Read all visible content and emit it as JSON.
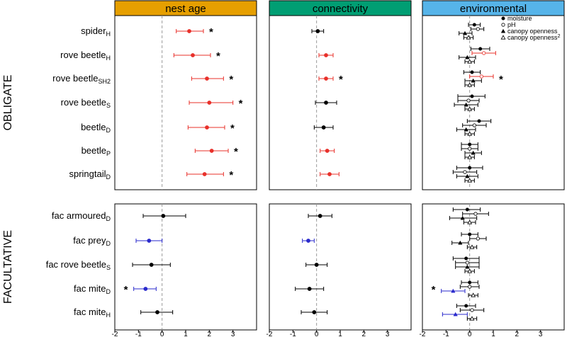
{
  "chart_data": {
    "type": "scatter",
    "subtype": "forest-plot",
    "xlim": [
      -2,
      4
    ],
    "x_ticks": [
      -2,
      -1,
      0,
      1,
      2,
      3
    ],
    "reference_line_x": 0,
    "panels": [
      "nest age",
      "connectivity",
      "environmental"
    ],
    "panel_colors": {
      "nest age": "#E69F00",
      "connectivity": "#009E73",
      "environmental": "#56B4E9"
    },
    "colors": {
      "positive": "#e8302a",
      "negative": "#2a2acc",
      "neutral": "#000000"
    },
    "groups": [
      {
        "label": "OBLIGATE",
        "rows": [
          {
            "name": "spider",
            "sub": "H",
            "nest_age": {
              "est": 1.15,
              "lo": 0.6,
              "hi": 1.75,
              "sig": true
            },
            "connectivity": {
              "est": 0.05,
              "lo": -0.2,
              "hi": 0.3,
              "sig": false
            },
            "environmental": [
              {
                "var": "moisture",
                "est": 0.2,
                "lo": -0.05,
                "hi": 0.45,
                "sig": false
              },
              {
                "var": "pH",
                "est": 0.35,
                "lo": 0.05,
                "hi": 0.6,
                "sig": false
              },
              {
                "var": "canopy openness",
                "est": -0.2,
                "lo": -0.45,
                "hi": 0.1,
                "sig": false
              },
              {
                "var": "canopy openness2",
                "est": -0.05,
                "lo": -0.25,
                "hi": 0.15,
                "sig": false
              }
            ]
          },
          {
            "name": "rove beetle",
            "sub": "H",
            "nest_age": {
              "est": 1.3,
              "lo": 0.5,
              "hi": 2.05,
              "sig": true
            },
            "connectivity": {
              "est": 0.4,
              "lo": 0.1,
              "hi": 0.7,
              "sig": true
            },
            "environmental": [
              {
                "var": "moisture",
                "est": 0.45,
                "lo": 0.05,
                "hi": 0.85,
                "sig": false
              },
              {
                "var": "pH",
                "est": 0.6,
                "lo": 0.1,
                "hi": 1.1,
                "sig": true
              },
              {
                "var": "canopy openness",
                "est": -0.1,
                "lo": -0.45,
                "hi": 0.25,
                "sig": false
              },
              {
                "var": "canopy openness2",
                "est": 0.0,
                "lo": -0.2,
                "hi": 0.2,
                "sig": false
              }
            ]
          },
          {
            "name": "rove beetle",
            "sub": "SH2",
            "nest_age": {
              "est": 1.9,
              "lo": 1.25,
              "hi": 2.6,
              "sig": true
            },
            "connectivity": {
              "est": 0.4,
              "lo": 0.1,
              "hi": 0.7,
              "sig": true
            },
            "environmental": [
              {
                "var": "moisture",
                "est": 0.1,
                "lo": -0.25,
                "hi": 0.45,
                "sig": false
              },
              {
                "var": "pH",
                "est": 0.5,
                "lo": 0.0,
                "hi": 1.0,
                "sig": true
              },
              {
                "var": "canopy openness",
                "est": 0.15,
                "lo": -0.2,
                "hi": 0.5,
                "sig": false
              },
              {
                "var": "canopy openness2",
                "est": 0.0,
                "lo": -0.2,
                "hi": 0.2,
                "sig": false
              }
            ]
          },
          {
            "name": "rove beetle",
            "sub": "S",
            "nest_age": {
              "est": 2.0,
              "lo": 1.15,
              "hi": 3.0,
              "sig": true
            },
            "connectivity": {
              "est": 0.4,
              "lo": -0.05,
              "hi": 0.85,
              "sig": false
            },
            "environmental": [
              {
                "var": "moisture",
                "est": 0.1,
                "lo": -0.5,
                "hi": 0.65,
                "sig": false
              },
              {
                "var": "pH",
                "est": -0.05,
                "lo": -0.5,
                "hi": 0.4,
                "sig": false
              },
              {
                "var": "canopy openness",
                "est": -0.15,
                "lo": -0.65,
                "hi": 0.35,
                "sig": false
              },
              {
                "var": "canopy openness2",
                "est": 0.0,
                "lo": -0.2,
                "hi": 0.2,
                "sig": false
              }
            ]
          },
          {
            "name": "beetle",
            "sub": "D",
            "nest_age": {
              "est": 1.9,
              "lo": 1.1,
              "hi": 2.65,
              "sig": true
            },
            "connectivity": {
              "est": 0.3,
              "lo": -0.1,
              "hi": 0.7,
              "sig": false
            },
            "environmental": [
              {
                "var": "moisture",
                "est": 0.4,
                "lo": -0.1,
                "hi": 0.9,
                "sig": false
              },
              {
                "var": "pH",
                "est": 0.2,
                "lo": -0.3,
                "hi": 0.7,
                "sig": false
              },
              {
                "var": "canopy openness",
                "est": -0.15,
                "lo": -0.55,
                "hi": 0.25,
                "sig": false
              },
              {
                "var": "canopy openness2",
                "est": 0.0,
                "lo": -0.2,
                "hi": 0.2,
                "sig": false
              }
            ]
          },
          {
            "name": "beetle",
            "sub": "P",
            "nest_age": {
              "est": 2.1,
              "lo": 1.4,
              "hi": 2.8,
              "sig": true
            },
            "connectivity": {
              "est": 0.45,
              "lo": 0.15,
              "hi": 0.75,
              "sig": true
            },
            "environmental": [
              {
                "var": "moisture",
                "est": 0.0,
                "lo": -0.35,
                "hi": 0.35,
                "sig": false
              },
              {
                "var": "pH",
                "est": 0.0,
                "lo": -0.35,
                "hi": 0.35,
                "sig": false
              },
              {
                "var": "canopy openness",
                "est": 0.15,
                "lo": -0.2,
                "hi": 0.5,
                "sig": false
              },
              {
                "var": "canopy openness2",
                "est": 0.0,
                "lo": -0.2,
                "hi": 0.2,
                "sig": false
              }
            ]
          },
          {
            "name": "springtail",
            "sub": "D",
            "nest_age": {
              "est": 1.8,
              "lo": 1.05,
              "hi": 2.6,
              "sig": true
            },
            "connectivity": {
              "est": 0.55,
              "lo": 0.15,
              "hi": 0.95,
              "sig": true
            },
            "environmental": [
              {
                "var": "moisture",
                "est": 0.0,
                "lo": -0.55,
                "hi": 0.55,
                "sig": false
              },
              {
                "var": "pH",
                "est": -0.2,
                "lo": -0.7,
                "hi": 0.3,
                "sig": false
              },
              {
                "var": "canopy openness",
                "est": -0.1,
                "lo": -0.55,
                "hi": 0.35,
                "sig": false
              },
              {
                "var": "canopy openness2",
                "est": 0.0,
                "lo": -0.2,
                "hi": 0.2,
                "sig": false
              }
            ]
          }
        ]
      },
      {
        "label": "FACULTATIVE",
        "rows": [
          {
            "name": "fac armoured",
            "sub": "D",
            "nest_age": {
              "est": 0.05,
              "lo": -0.8,
              "hi": 1.0,
              "sig": false
            },
            "connectivity": {
              "est": 0.15,
              "lo": -0.35,
              "hi": 0.65,
              "sig": false
            },
            "environmental": [
              {
                "var": "moisture",
                "est": -0.1,
                "lo": -0.7,
                "hi": 0.45,
                "sig": false
              },
              {
                "var": "pH",
                "est": 0.25,
                "lo": -0.3,
                "hi": 0.8,
                "sig": false
              },
              {
                "var": "canopy openness",
                "est": -0.3,
                "lo": -0.85,
                "hi": 0.3,
                "sig": false
              },
              {
                "var": "canopy openness2",
                "est": 0.0,
                "lo": -0.25,
                "hi": 0.25,
                "sig": false
              }
            ]
          },
          {
            "name": "fac prey",
            "sub": "D",
            "nest_age": {
              "est": -0.55,
              "lo": -1.1,
              "hi": 0.0,
              "sig": true
            },
            "connectivity": {
              "est": -0.35,
              "lo": -0.6,
              "hi": -0.1,
              "sig": true
            },
            "environmental": [
              {
                "var": "moisture",
                "est": 0.0,
                "lo": -0.35,
                "hi": 0.35,
                "sig": false
              },
              {
                "var": "pH",
                "est": 0.35,
                "lo": 0.0,
                "hi": 0.7,
                "sig": false
              },
              {
                "var": "canopy openness",
                "est": -0.4,
                "lo": -0.75,
                "hi": -0.05,
                "sig": false
              },
              {
                "var": "canopy openness2",
                "est": 0.1,
                "lo": -0.1,
                "hi": 0.3,
                "sig": false
              }
            ]
          },
          {
            "name": "fac rove beetle",
            "sub": "S",
            "nest_age": {
              "est": -0.45,
              "lo": -1.25,
              "hi": 0.35,
              "sig": false
            },
            "connectivity": {
              "est": 0.0,
              "lo": -0.45,
              "hi": 0.45,
              "sig": false
            },
            "environmental": [
              {
                "var": "moisture",
                "est": -0.15,
                "lo": -0.7,
                "hi": 0.4,
                "sig": false
              },
              {
                "var": "pH",
                "est": -0.1,
                "lo": -0.6,
                "hi": 0.4,
                "sig": false
              },
              {
                "var": "canopy openness",
                "est": -0.1,
                "lo": -0.6,
                "hi": 0.4,
                "sig": false
              },
              {
                "var": "canopy openness2",
                "est": 0.0,
                "lo": -0.2,
                "hi": 0.2,
                "sig": false
              }
            ]
          },
          {
            "name": "fac mite",
            "sub": "D",
            "nest_age": {
              "est": -0.7,
              "lo": -1.2,
              "hi": -0.25,
              "sig": true
            },
            "connectivity": {
              "est": -0.3,
              "lo": -0.9,
              "hi": 0.3,
              "sig": false
            },
            "environmental": [
              {
                "var": "moisture",
                "est": 0.0,
                "lo": -0.35,
                "hi": 0.35,
                "sig": false
              },
              {
                "var": "pH",
                "est": 0.0,
                "lo": -0.4,
                "hi": 0.4,
                "sig": false
              },
              {
                "var": "canopy openness",
                "est": -0.7,
                "lo": -1.2,
                "hi": -0.2,
                "sig": true
              },
              {
                "var": "canopy openness2",
                "est": 0.15,
                "lo": -0.05,
                "hi": 0.35,
                "sig": false
              }
            ]
          },
          {
            "name": "fac mite",
            "sub": "H",
            "nest_age": {
              "est": -0.2,
              "lo": -0.9,
              "hi": 0.45,
              "sig": false
            },
            "connectivity": {
              "est": -0.1,
              "lo": -0.65,
              "hi": 0.45,
              "sig": false
            },
            "environmental": [
              {
                "var": "moisture",
                "est": -0.15,
                "lo": -0.55,
                "hi": 0.25,
                "sig": false
              },
              {
                "var": "pH",
                "est": 0.1,
                "lo": -0.4,
                "hi": 0.6,
                "sig": false
              },
              {
                "var": "canopy openness",
                "est": -0.6,
                "lo": -1.15,
                "hi": -0.1,
                "sig": true
              },
              {
                "var": "canopy openness2",
                "est": 0.1,
                "lo": -0.1,
                "hi": 0.3,
                "sig": false
              }
            ]
          }
        ]
      }
    ],
    "significance_marker": "*",
    "significance_stars": {
      "nest_age": [
        [
          0,
          0
        ],
        [
          0,
          1
        ],
        [
          0,
          2
        ],
        [
          0,
          3
        ],
        [
          0,
          4
        ],
        [
          0,
          5
        ],
        [
          0,
          6
        ],
        [
          1,
          3
        ]
      ],
      "connectivity": [
        [
          0,
          2
        ]
      ],
      "environmental": [
        [
          0,
          2
        ],
        [
          1,
          3
        ]
      ]
    },
    "legend": {
      "location": "top-right of environmental panel",
      "entries": [
        {
          "label": "moisture",
          "sup": "",
          "marker": "filled-circle"
        },
        {
          "label": "pH",
          "sup": "",
          "marker": "open-circle"
        },
        {
          "label": "canopy openness",
          "sup": "",
          "marker": "filled-triangle"
        },
        {
          "label": "canopy openness",
          "sup": "2",
          "marker": "open-triangle"
        }
      ]
    }
  }
}
